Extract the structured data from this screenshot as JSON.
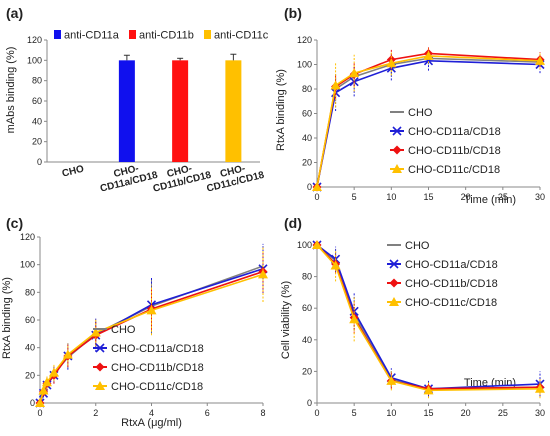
{
  "panels": [
    {
      "label": "(a)"
    },
    {
      "label": "(b)"
    },
    {
      "label": "(c)"
    },
    {
      "label": "(d)"
    }
  ],
  "colors": {
    "CHO": "#808080",
    "CHO-CD11a/CD18": "#1f1fd6",
    "CHO-CD11b/CD18": "#ee1111",
    "CHO-CD11c/CD18": "#ffc000",
    "anti-CD11a": "#1010ee",
    "anti-CD11b": "#ff1010",
    "anti-CD11c": "#ffc000"
  },
  "chart_data": [
    {
      "type": "bar",
      "panel": "(a)",
      "categories": [
        "CHO",
        "CHO-\nCD11a/CD18",
        "CHO-\nCD11b/CD18",
        "CHO-\nCD11c/CD18"
      ],
      "series": [
        {
          "name": "anti-CD11a",
          "values": [
            0,
            100,
            0,
            0
          ],
          "errors": [
            0,
            5,
            0,
            0
          ]
        },
        {
          "name": "anti-CD11b",
          "values": [
            0,
            0,
            100,
            0
          ],
          "errors": [
            0,
            0,
            2,
            0
          ]
        },
        {
          "name": "anti-CD11c",
          "values": [
            0,
            0,
            0,
            100
          ],
          "errors": [
            0,
            0,
            0,
            6
          ]
        }
      ],
      "ylabel": "mAbs binding (%)",
      "xlabel": "",
      "ylim": [
        0,
        120
      ],
      "yticks": [
        0,
        20,
        40,
        60,
        80,
        100,
        120
      ],
      "legend": "top"
    },
    {
      "type": "line",
      "panel": "(b)",
      "x": [
        0,
        2.5,
        5,
        10,
        15,
        30
      ],
      "series": [
        {
          "name": "CHO",
          "values": [
            0,
            80,
            90,
            100,
            105,
            102
          ],
          "errors": [
            2,
            10,
            8,
            8,
            5,
            6
          ]
        },
        {
          "name": "CHO-CD11a/CD18",
          "values": [
            0,
            77,
            86,
            97,
            103,
            100
          ],
          "errors": [
            2,
            15,
            12,
            10,
            8,
            7
          ]
        },
        {
          "name": "CHO-CD11b/CD18",
          "values": [
            0,
            82,
            92,
            104,
            109,
            104
          ],
          "errors": [
            2,
            10,
            10,
            8,
            5,
            6
          ]
        },
        {
          "name": "CHO-CD11c/CD18",
          "values": [
            0,
            83,
            93,
            101,
            107,
            103
          ],
          "errors": [
            2,
            18,
            15,
            10,
            6,
            7
          ]
        }
      ],
      "ylabel": "RtxA binding (%)",
      "xlabel": "Time (min)",
      "xlim": [
        0,
        30
      ],
      "ylim": [
        0,
        120
      ],
      "xticks": [
        0,
        5,
        10,
        15,
        20,
        25,
        30
      ],
      "yticks": [
        0,
        20,
        40,
        60,
        80,
        100,
        120
      ],
      "legend": "bottom-right"
    },
    {
      "type": "line",
      "panel": "(c)",
      "x": [
        0,
        0.125,
        0.25,
        0.5,
        1,
        2,
        4,
        8
      ],
      "series": [
        {
          "name": "CHO",
          "values": [
            0,
            8,
            15,
            21,
            33,
            50,
            70,
            99
          ],
          "errors": [
            2,
            3,
            5,
            6,
            8,
            10,
            20,
            15
          ]
        },
        {
          "name": "CHO-CD11a/CD18",
          "values": [
            0,
            7,
            13,
            20,
            34,
            49,
            71,
            97
          ],
          "errors": [
            2,
            3,
            5,
            6,
            10,
            12,
            20,
            18
          ]
        },
        {
          "name": "CHO-CD11b/CD18",
          "values": [
            0,
            8,
            14,
            20,
            34,
            49,
            68,
            95
          ],
          "errors": [
            2,
            3,
            5,
            6,
            8,
            10,
            15,
            15
          ]
        },
        {
          "name": "CHO-CD11c/CD18",
          "values": [
            0,
            9,
            15,
            22,
            35,
            51,
            67,
            93
          ],
          "errors": [
            2,
            3,
            5,
            6,
            8,
            10,
            18,
            20
          ]
        }
      ],
      "ylabel": "RtxA binding (%)",
      "xlabel": "RtxA (μg/ml)",
      "xlim": [
        0,
        8
      ],
      "ylim": [
        0,
        120
      ],
      "xticks": [
        0,
        2,
        4,
        6,
        8
      ],
      "yticks": [
        0,
        20,
        40,
        60,
        80,
        100,
        120
      ],
      "legend": "bottom-right"
    },
    {
      "type": "line",
      "panel": "(d)",
      "x": [
        0,
        2.5,
        5,
        10,
        15,
        30
      ],
      "series": [
        {
          "name": "CHO",
          "values": [
            100,
            90,
            56,
            15,
            9,
            10
          ],
          "errors": [
            2,
            6,
            10,
            5,
            4,
            5
          ]
        },
        {
          "name": "CHO-CD11a/CD18",
          "values": [
            100,
            91,
            58,
            16,
            9,
            12
          ],
          "errors": [
            2,
            8,
            12,
            6,
            5,
            8
          ]
        },
        {
          "name": "CHO-CD11b/CD18",
          "values": [
            100,
            88,
            54,
            14,
            9,
            10
          ],
          "errors": [
            2,
            6,
            10,
            5,
            4,
            5
          ]
        },
        {
          "name": "CHO-CD11c/CD18",
          "values": [
            100,
            87,
            53,
            14,
            8,
            9
          ],
          "errors": [
            2,
            10,
            14,
            6,
            5,
            6
          ]
        }
      ],
      "ylabel": "Cell viability (%)",
      "xlabel": "Time (min)",
      "xlim": [
        0,
        30
      ],
      "ylim": [
        0,
        100
      ],
      "xticks": [
        0,
        5,
        10,
        15,
        20,
        25,
        30
      ],
      "yticks": [
        0,
        20,
        40,
        60,
        80,
        100
      ],
      "legend": "top-right"
    }
  ]
}
